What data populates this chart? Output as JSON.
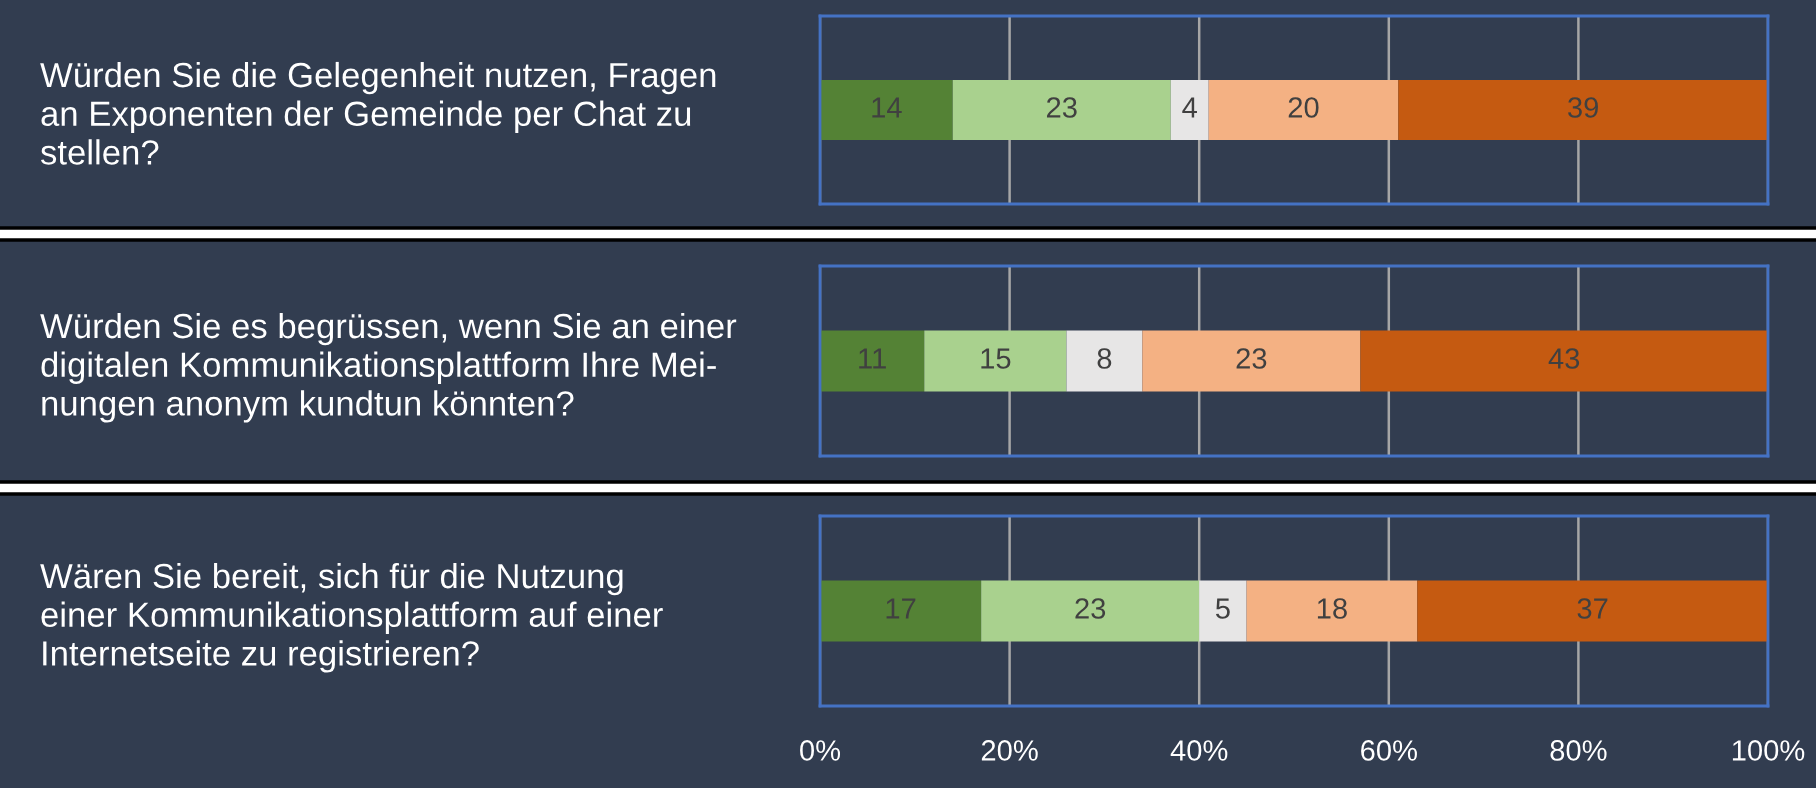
{
  "chart_data": {
    "type": "bar",
    "orientation": "horizontal",
    "stacked": true,
    "categories": [
      "Würden Sie die Gelegenheit nutzen, Fragen\nan Exponenten der Gemeinde per Chat zu\nstellen?",
      "Würden Sie es begrüssen, wenn Sie an einer\ndigitalen Kommunikationsplattform Ihre Mei-\nnungen anonym kundtun könnten?",
      "Wären Sie bereit, sich für die Nutzung\neiner Kommunikationsplattform auf einer\nInternetseite zu registrieren?"
    ],
    "series": [
      {
        "color": "#548235",
        "values": [
          14,
          11,
          17
        ]
      },
      {
        "color": "#a9d18e",
        "values": [
          23,
          15,
          23
        ]
      },
      {
        "color": "#e7e6e6",
        "values": [
          4,
          8,
          5
        ]
      },
      {
        "color": "#f4b183",
        "values": [
          20,
          23,
          18
        ]
      },
      {
        "color": "#c55a11",
        "values": [
          39,
          43,
          37
        ]
      }
    ],
    "xlim": [
      0,
      100
    ],
    "xticks": [
      {
        "value": 0,
        "label": "0%"
      },
      {
        "value": 20,
        "label": "20%"
      },
      {
        "value": 40,
        "label": "40%"
      },
      {
        "value": 60,
        "label": "60%"
      },
      {
        "value": 80,
        "label": "80%"
      },
      {
        "value": 100,
        "label": "100%"
      }
    ],
    "grid": "x",
    "data_labels": true
  }
}
